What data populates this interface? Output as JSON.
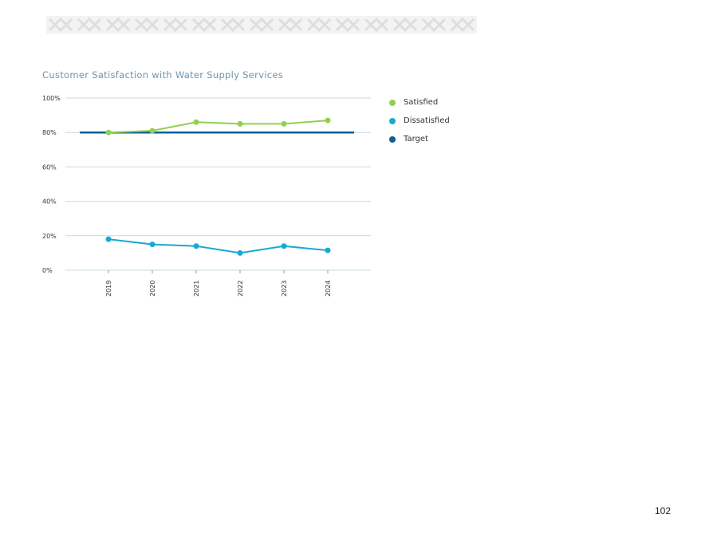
{
  "page_number": "102",
  "colors": {
    "satisfied": "#92d050",
    "dissatisfied": "#17a9d3",
    "target": "#0b5f93",
    "grid": "#c7dbe3",
    "title": "#6e94ad",
    "banner": "#e8e8e8"
  },
  "banner": {
    "icon": "decorative-pattern-banner"
  },
  "chart_data": {
    "type": "line",
    "title": "Customer Satisfaction with Water Supply Services",
    "xlabel": "",
    "ylabel": "",
    "categories": [
      "2019",
      "2020",
      "2021",
      "2022",
      "2023",
      "2024"
    ],
    "ylim": [
      0,
      100
    ],
    "yticks": [
      0,
      20,
      40,
      60,
      80,
      100
    ],
    "ytick_labels": [
      "0%",
      "20%",
      "40%",
      "60%",
      "80%",
      "100%"
    ],
    "grid": "horizontal",
    "legend_position": "right",
    "series": [
      {
        "name": "Satisfied",
        "color": "#92d050",
        "markers": true,
        "values": [
          80,
          81,
          86,
          85,
          85,
          87
        ]
      },
      {
        "name": "Dissatisfied",
        "color": "#17a9d3",
        "markers": true,
        "values": [
          18,
          15,
          14,
          10,
          14,
          11.5
        ]
      },
      {
        "name": "Target",
        "color": "#0b5f93",
        "markers": false,
        "values": [
          80,
          80,
          80,
          80,
          80,
          80
        ]
      }
    ]
  }
}
